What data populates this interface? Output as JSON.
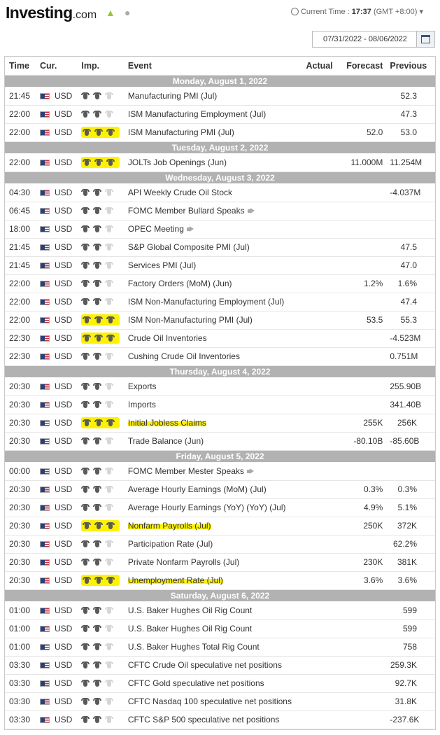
{
  "header": {
    "logo": "Investing",
    "logo_suffix": ".com",
    "current_time_label": "Current Time :",
    "current_time_value": "17:37",
    "timezone": "(GMT +8:00)",
    "date_range": "07/31/2022 - 08/06/2022"
  },
  "columns": {
    "time": "Time",
    "cur": "Cur.",
    "imp": "Imp.",
    "event": "Event",
    "actual": "Actual",
    "forecast": "Forecast",
    "previous": "Previous"
  },
  "colors": {
    "highlight": "#fdf200",
    "day_header": "#b2b2b2",
    "bull_active": "#5a5a5a",
    "bull_inactive": "#d6d6d6"
  },
  "days": [
    {
      "label": "Monday, August 1, 2022",
      "events": [
        {
          "time": "21:45",
          "cur": "USD",
          "imp": 2,
          "event": "Manufacturing PMI (Jul)",
          "actual": "",
          "forecast": "",
          "previous": "52.3"
        },
        {
          "time": "22:00",
          "cur": "USD",
          "imp": 2,
          "event": "ISM Manufacturing Employment (Jul)",
          "actual": "",
          "forecast": "",
          "previous": "47.3"
        },
        {
          "time": "22:00",
          "cur": "USD",
          "imp": 3,
          "imp_hl": true,
          "event": "ISM Manufacturing PMI (Jul)",
          "actual": "",
          "forecast": "52.0",
          "previous": "53.0"
        }
      ]
    },
    {
      "label": "Tuesday, August 2, 2022",
      "events": [
        {
          "time": "22:00",
          "cur": "USD",
          "imp": 3,
          "imp_hl": true,
          "event": "JOLTs Job Openings (Jun)",
          "actual": "",
          "forecast": "11.000M",
          "previous": "11.254M"
        }
      ]
    },
    {
      "label": "Wednesday, August 3, 2022",
      "events": [
        {
          "time": "04:30",
          "cur": "USD",
          "imp": 2,
          "event": "API Weekly Crude Oil Stock",
          "actual": "",
          "forecast": "",
          "previous": "-4.037M"
        },
        {
          "time": "06:45",
          "cur": "USD",
          "imp": 2,
          "event": "FOMC Member Bullard Speaks",
          "speech": true,
          "actual": "",
          "forecast": "",
          "previous": ""
        },
        {
          "time": "18:00",
          "cur": "USD",
          "imp": 2,
          "event": "OPEC Meeting",
          "speech": true,
          "actual": "",
          "forecast": "",
          "previous": ""
        },
        {
          "time": "21:45",
          "cur": "USD",
          "imp": 2,
          "event": "S&P Global Composite PMI (Jul)",
          "actual": "",
          "forecast": "",
          "previous": "47.5"
        },
        {
          "time": "21:45",
          "cur": "USD",
          "imp": 2,
          "event": "Services PMI (Jul)",
          "actual": "",
          "forecast": "",
          "previous": "47.0"
        },
        {
          "time": "22:00",
          "cur": "USD",
          "imp": 2,
          "event": "Factory Orders (MoM) (Jun)",
          "actual": "",
          "forecast": "1.2%",
          "previous": "1.6%"
        },
        {
          "time": "22:00",
          "cur": "USD",
          "imp": 2,
          "event": "ISM Non-Manufacturing Employment (Jul)",
          "actual": "",
          "forecast": "",
          "previous": "47.4"
        },
        {
          "time": "22:00",
          "cur": "USD",
          "imp": 3,
          "imp_hl": true,
          "event": "ISM Non-Manufacturing PMI (Jul)",
          "actual": "",
          "forecast": "53.5",
          "previous": "55.3"
        },
        {
          "time": "22:30",
          "cur": "USD",
          "imp": 3,
          "imp_hl": true,
          "event": "Crude Oil Inventories",
          "actual": "",
          "forecast": "",
          "previous": "-4.523M"
        },
        {
          "time": "22:30",
          "cur": "USD",
          "imp": 2,
          "event": "Cushing Crude Oil Inventories",
          "actual": "",
          "forecast": "",
          "previous": "0.751M"
        }
      ]
    },
    {
      "label": "Thursday, August 4, 2022",
      "events": [
        {
          "time": "20:30",
          "cur": "USD",
          "imp": 2,
          "event": "Exports",
          "actual": "",
          "forecast": "",
          "previous": "255.90B"
        },
        {
          "time": "20:30",
          "cur": "USD",
          "imp": 2,
          "event": "Imports",
          "actual": "",
          "forecast": "",
          "previous": "341.40B"
        },
        {
          "time": "20:30",
          "cur": "USD",
          "imp": 3,
          "imp_hl": true,
          "event": "Initial Jobless Claims",
          "ev_hl": true,
          "actual": "",
          "forecast": "255K",
          "previous": "256K"
        },
        {
          "time": "20:30",
          "cur": "USD",
          "imp": 2,
          "event": "Trade Balance (Jun)",
          "actual": "",
          "forecast": "-80.10B",
          "previous": "-85.60B"
        }
      ]
    },
    {
      "label": "Friday, August 5, 2022",
      "events": [
        {
          "time": "00:00",
          "cur": "USD",
          "imp": 2,
          "event": "FOMC Member Mester Speaks",
          "speech": true,
          "actual": "",
          "forecast": "",
          "previous": ""
        },
        {
          "time": "20:30",
          "cur": "USD",
          "imp": 2,
          "event": "Average Hourly Earnings (MoM) (Jul)",
          "actual": "",
          "forecast": "0.3%",
          "previous": "0.3%"
        },
        {
          "time": "20:30",
          "cur": "USD",
          "imp": 2,
          "event": "Average Hourly Earnings (YoY) (YoY) (Jul)",
          "actual": "",
          "forecast": "4.9%",
          "previous": "5.1%"
        },
        {
          "time": "20:30",
          "cur": "USD",
          "imp": 3,
          "imp_hl": true,
          "event": "Nonfarm Payrolls (Jul)",
          "ev_hl": true,
          "actual": "",
          "forecast": "250K",
          "previous": "372K"
        },
        {
          "time": "20:30",
          "cur": "USD",
          "imp": 2,
          "event": "Participation Rate (Jul)",
          "actual": "",
          "forecast": "",
          "previous": "62.2%"
        },
        {
          "time": "20:30",
          "cur": "USD",
          "imp": 2,
          "event": "Private Nonfarm Payrolls (Jul)",
          "actual": "",
          "forecast": "230K",
          "previous": "381K"
        },
        {
          "time": "20:30",
          "cur": "USD",
          "imp": 3,
          "imp_hl": true,
          "event": "Unemployment Rate (Jul)",
          "ev_hl": true,
          "actual": "",
          "forecast": "3.6%",
          "previous": "3.6%"
        }
      ]
    },
    {
      "label": "Saturday, August 6, 2022",
      "events": [
        {
          "time": "01:00",
          "cur": "USD",
          "imp": 2,
          "event": "U.S. Baker Hughes Oil Rig Count",
          "actual": "",
          "forecast": "",
          "previous": "599"
        },
        {
          "time": "01:00",
          "cur": "USD",
          "imp": 2,
          "event": "U.S. Baker Hughes Oil Rig Count",
          "actual": "",
          "forecast": "",
          "previous": "599"
        },
        {
          "time": "01:00",
          "cur": "USD",
          "imp": 2,
          "event": "U.S. Baker Hughes Total Rig Count",
          "actual": "",
          "forecast": "",
          "previous": "758"
        },
        {
          "time": "03:30",
          "cur": "USD",
          "imp": 2,
          "event": "CFTC Crude Oil speculative net positions",
          "actual": "",
          "forecast": "",
          "previous": "259.3K"
        },
        {
          "time": "03:30",
          "cur": "USD",
          "imp": 2,
          "event": "CFTC Gold speculative net positions",
          "actual": "",
          "forecast": "",
          "previous": "92.7K"
        },
        {
          "time": "03:30",
          "cur": "USD",
          "imp": 2,
          "event": "CFTC Nasdaq 100 speculative net positions",
          "actual": "",
          "forecast": "",
          "previous": "31.8K"
        },
        {
          "time": "03:30",
          "cur": "USD",
          "imp": 2,
          "event": "CFTC S&P 500 speculative net positions",
          "actual": "",
          "forecast": "",
          "previous": "-237.6K"
        }
      ]
    }
  ]
}
